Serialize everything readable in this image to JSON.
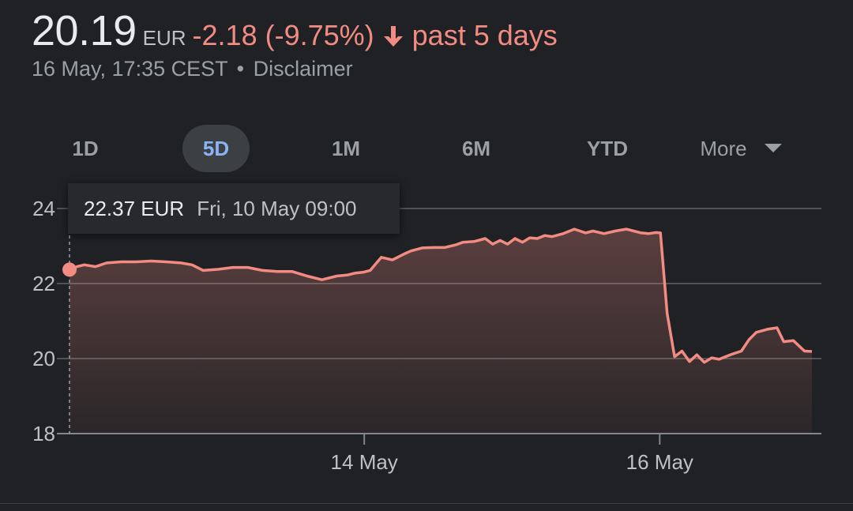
{
  "header": {
    "price": "20.19",
    "currency": "EUR",
    "change": "-2.18 (-9.75%)",
    "period": "past 5 days",
    "timestamp": "16 May, 17:35 CEST",
    "separator": "•",
    "disclaimer": "Disclaimer",
    "accent_color": "#f28b82",
    "arrow_icon": "arrow-down-icon"
  },
  "tabs": [
    {
      "label": "1D",
      "active": false
    },
    {
      "label": "5D",
      "active": true
    },
    {
      "label": "1M",
      "active": false
    },
    {
      "label": "6M",
      "active": false
    },
    {
      "label": "YTD",
      "active": false
    },
    {
      "label": "More",
      "active": false
    }
  ],
  "tooltip": {
    "value": "22.37 EUR",
    "time": "Fri, 10 May 09:00"
  },
  "chart_data": {
    "type": "area",
    "ylim": [
      18,
      24.5
    ],
    "yticks": [
      24,
      22,
      20,
      18
    ],
    "xlim": [
      0,
      100
    ],
    "xtick_labels": [
      {
        "x": 39.7,
        "label": "14 May"
      },
      {
        "x": 79.5,
        "label": "16 May"
      }
    ],
    "grid": true,
    "line_color": "#f28b82",
    "hover_index": 0,
    "series": [
      {
        "x": [
          0,
          1,
          2,
          3.5,
          5,
          7,
          9,
          11,
          13,
          15,
          16.5,
          18,
          20,
          22,
          24,
          26,
          28,
          30,
          32,
          34,
          36,
          37.5,
          38.5,
          39.5,
          40.5,
          42,
          43.5,
          45,
          46,
          47.5,
          49,
          50.5,
          52,
          53,
          54.5,
          56,
          57,
          58,
          59,
          60,
          61,
          62,
          63,
          64,
          65,
          66.5,
          68,
          69.5,
          70.5,
          72,
          73.5,
          75,
          76,
          77,
          78,
          79,
          79.6,
          80.5,
          81.5,
          82.5,
          83.5,
          84.5,
          85.5,
          86.5,
          87.5,
          89,
          90.5,
          91.5,
          92.5,
          94,
          95.3,
          96.2,
          97.5,
          99,
          100
        ],
        "y": [
          22.37,
          22.45,
          22.5,
          22.45,
          22.55,
          22.58,
          22.58,
          22.6,
          22.58,
          22.55,
          22.5,
          22.35,
          22.38,
          22.43,
          22.43,
          22.35,
          22.32,
          22.32,
          22.2,
          22.1,
          22.2,
          22.23,
          22.28,
          22.3,
          22.35,
          22.7,
          22.63,
          22.78,
          22.87,
          22.95,
          22.96,
          22.96,
          23.03,
          23.1,
          23.12,
          23.2,
          23.05,
          23.15,
          23.05,
          23.2,
          23.1,
          23.22,
          23.2,
          23.28,
          23.25,
          23.33,
          23.45,
          23.35,
          23.4,
          23.33,
          23.4,
          23.45,
          23.4,
          23.35,
          23.33,
          23.36,
          23.35,
          21.2,
          20.05,
          20.2,
          19.92,
          20.1,
          19.9,
          20.02,
          19.98,
          20.1,
          20.2,
          20.5,
          20.7,
          20.78,
          20.82,
          20.45,
          20.48,
          20.2,
          20.19
        ]
      }
    ]
  }
}
